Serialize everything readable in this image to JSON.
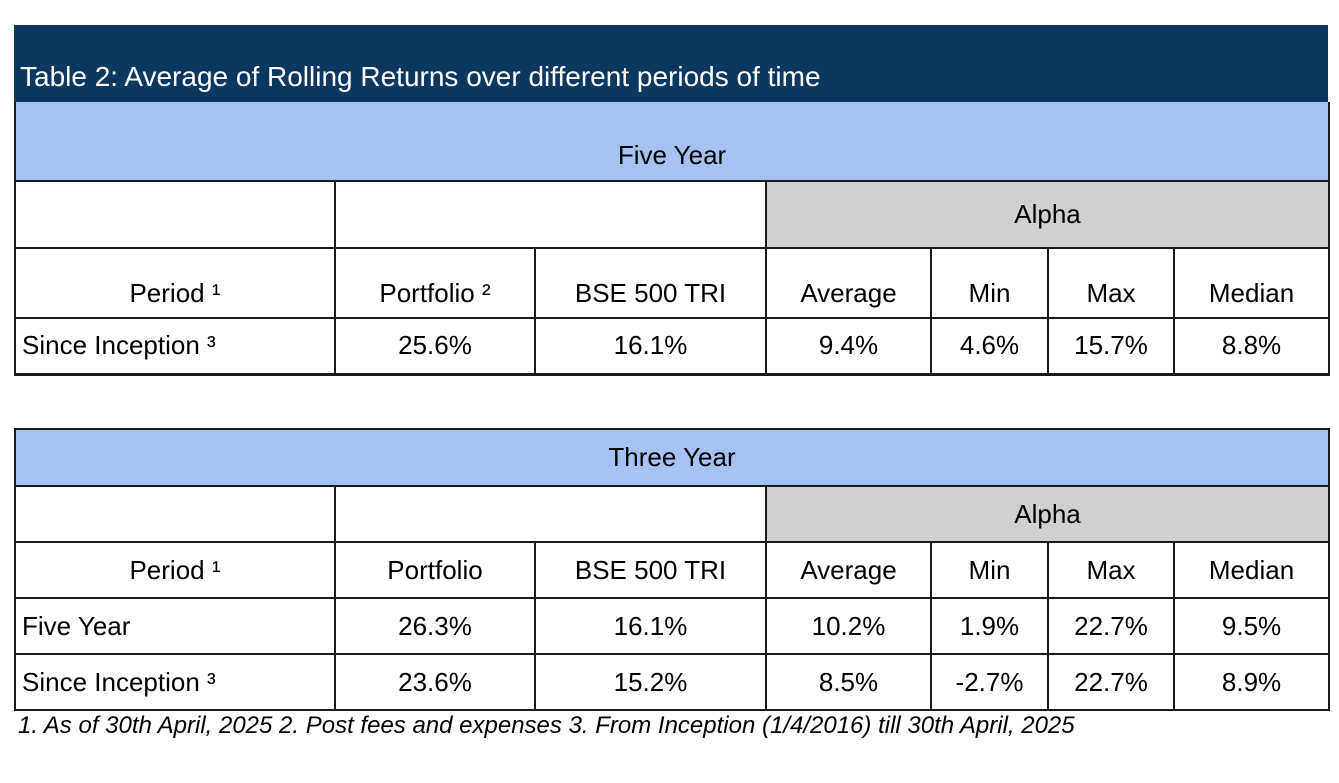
{
  "title": "Table 2: Average of Rolling Returns over different periods of time",
  "five_year": {
    "band": "Five Year",
    "alpha_label": "Alpha",
    "headers": [
      "Period ¹",
      "Portfolio ²",
      "BSE 500 TRI",
      "Average",
      "Min",
      "Max",
      "Median"
    ],
    "rows": [
      [
        "Since Inception ³",
        "25.6%",
        "16.1%",
        "9.4%",
        "4.6%",
        "15.7%",
        "8.8%"
      ]
    ]
  },
  "three_year": {
    "band": "Three Year",
    "alpha_label": "Alpha",
    "headers": [
      "Period ¹",
      "Portfolio",
      "BSE 500 TRI",
      "Average",
      "Min",
      "Max",
      "Median"
    ],
    "rows": [
      [
        "Five Year",
        "26.3%",
        "16.1%",
        "10.2%",
        "1.9%",
        "22.7%",
        "9.5%"
      ],
      [
        "Since Inception ³",
        "23.6%",
        "15.2%",
        "8.5%",
        "-2.7%",
        "22.7%",
        "8.9%"
      ]
    ]
  },
  "footnote": "1. As of 30th April, 2025 2. Post fees and expenses 3. From Inception (1/4/2016) till 30th April, 2025",
  "colors": {
    "title_bar": "#0b3861",
    "band": "#a4c2f4",
    "alpha_header": "#d0d0d0"
  }
}
